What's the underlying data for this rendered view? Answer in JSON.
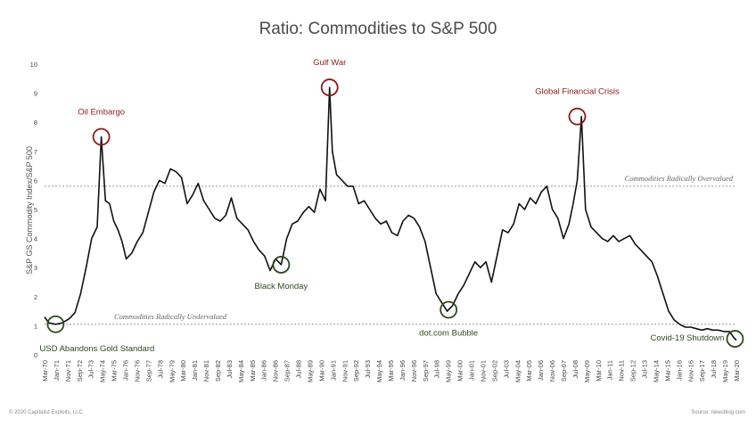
{
  "chart_data": {
    "type": "line",
    "title": "Ratio: Commodities to S&P 500",
    "ylabel": "S&P GS Commodity Index/S&P 500",
    "xlabel": "",
    "ylim": [
      0,
      10
    ],
    "yticks": [
      0,
      1,
      2,
      3,
      4,
      5,
      6,
      7,
      8,
      9,
      10
    ],
    "grid": false,
    "xticks": [
      "Mar-70",
      "Jan-71",
      "Nov-71",
      "Sep-72",
      "Jul-73",
      "May-74",
      "Mar-75",
      "Jan-76",
      "Nov-76",
      "Sep-77",
      "Jul-78",
      "May-79",
      "Mar-80",
      "Jan-81",
      "Nov-81",
      "Sep-82",
      "Jul-83",
      "May-84",
      "Mar-85",
      "Jan-86",
      "Nov-86",
      "Sep-87",
      "Jul-88",
      "May-89",
      "Mar-90",
      "Jan-91",
      "Nov-91",
      "Sep-92",
      "Jul-93",
      "May-94",
      "Mar-95",
      "Jan-96",
      "Nov-96",
      "Sep-97",
      "Jul-98",
      "May-99",
      "Mar-00",
      "Jan-01",
      "Nov-01",
      "Sep-02",
      "Jul-03",
      "May-04",
      "Mar-05",
      "Jan-06",
      "Nov-06",
      "Sep-07",
      "Jul-08",
      "May-09",
      "Mar-10",
      "Jan-11",
      "Nov-11",
      "Sep-12",
      "Jul-13",
      "May-14",
      "Mar-15",
      "Jan-16",
      "Nov-16",
      "Sep-17",
      "Jul-18",
      "May-19",
      "Mar-20"
    ],
    "series": [
      {
        "color": "#111111",
        "x": [
          1970.2,
          1970.5,
          1971.0,
          1971.5,
          1972.0,
          1972.4,
          1972.8,
          1973.2,
          1973.6,
          1974.0,
          1974.3,
          1974.6,
          1974.9,
          1975.2,
          1975.5,
          1975.8,
          1976.1,
          1976.5,
          1976.9,
          1977.3,
          1977.7,
          1978.1,
          1978.5,
          1978.9,
          1979.3,
          1979.7,
          1980.1,
          1980.5,
          1980.9,
          1981.3,
          1981.7,
          1982.1,
          1982.5,
          1982.9,
          1983.3,
          1983.7,
          1984.1,
          1984.5,
          1984.9,
          1985.3,
          1985.7,
          1986.1,
          1986.5,
          1986.9,
          1987.3,
          1987.7,
          1988.1,
          1988.5,
          1988.9,
          1989.3,
          1989.7,
          1990.1,
          1990.5,
          1990.8,
          1991.0,
          1991.3,
          1991.7,
          1992.1,
          1992.5,
          1992.9,
          1993.3,
          1993.7,
          1994.1,
          1994.5,
          1994.9,
          1995.3,
          1995.7,
          1996.1,
          1996.5,
          1996.9,
          1997.3,
          1997.7,
          1998.1,
          1998.5,
          1998.9,
          1999.3,
          1999.7,
          2000.1,
          2000.5,
          2000.9,
          2001.3,
          2001.7,
          2002.1,
          2002.5,
          2002.9,
          2003.3,
          2003.7,
          2004.1,
          2004.5,
          2004.9,
          2005.3,
          2005.7,
          2006.1,
          2006.5,
          2006.9,
          2007.3,
          2007.7,
          2008.1,
          2008.4,
          2008.7,
          2009.0,
          2009.3,
          2009.7,
          2010.1,
          2010.5,
          2010.9,
          2011.3,
          2011.7,
          2012.1,
          2012.5,
          2012.9,
          2013.3,
          2013.7,
          2014.1,
          2014.5,
          2014.9,
          2015.3,
          2015.7,
          2016.1,
          2016.5,
          2016.9,
          2017.3,
          2017.7,
          2018.1,
          2018.5,
          2018.9,
          2019.3,
          2019.7,
          2020.0,
          2020.2
        ],
        "values": [
          1.3,
          1.1,
          1.05,
          1.1,
          1.25,
          1.45,
          2.1,
          3.0,
          4.0,
          4.4,
          7.5,
          5.3,
          5.2,
          4.6,
          4.3,
          3.9,
          3.3,
          3.5,
          3.9,
          4.2,
          4.9,
          5.6,
          6.0,
          5.9,
          6.4,
          6.3,
          6.1,
          5.2,
          5.5,
          5.9,
          5.3,
          5.0,
          4.7,
          4.6,
          4.8,
          5.4,
          4.7,
          4.5,
          4.3,
          3.9,
          3.6,
          3.4,
          2.9,
          3.3,
          3.1,
          4.0,
          4.5,
          4.6,
          4.9,
          5.1,
          4.9,
          5.7,
          5.3,
          9.2,
          7.0,
          6.2,
          6.0,
          5.8,
          5.8,
          5.2,
          5.3,
          5.0,
          4.7,
          4.5,
          4.6,
          4.2,
          4.1,
          4.6,
          4.8,
          4.7,
          4.4,
          3.9,
          3.0,
          2.1,
          1.8,
          1.5,
          1.7,
          2.1,
          2.4,
          2.8,
          3.2,
          3.0,
          3.2,
          2.5,
          3.4,
          4.3,
          4.2,
          4.5,
          5.2,
          5.0,
          5.4,
          5.2,
          5.6,
          5.8,
          5.0,
          4.7,
          4.0,
          4.5,
          5.2,
          6.0,
          8.2,
          5.0,
          4.4,
          4.2,
          4.0,
          3.9,
          4.1,
          3.9,
          4.0,
          4.1,
          3.8,
          3.6,
          3.4,
          3.2,
          2.7,
          2.1,
          1.5,
          1.2,
          1.05,
          0.95,
          0.95,
          0.9,
          0.85,
          0.9,
          0.85,
          0.85,
          0.8,
          0.8,
          0.6,
          0.5
        ]
      }
    ],
    "reference_lines": [
      {
        "value": 5.8,
        "label": "Commodities Radically Overvalued"
      },
      {
        "value": 1.05,
        "label": "Commodities Radically Undervalued"
      }
    ],
    "annotations": [
      {
        "label": "Oil Embargo",
        "x": 1974.3,
        "y": 7.5,
        "color": "#8a1b1b"
      },
      {
        "label": "Gulf War",
        "x": 1990.8,
        "y": 9.2,
        "color": "#8a1b1b"
      },
      {
        "label": "Global Financial Crisis",
        "x": 2008.7,
        "y": 8.2,
        "color": "#8a1b1b"
      },
      {
        "label": "USD Abandons Gold Standard",
        "x": 1971.0,
        "y": 1.05,
        "color": "#2f4a1e"
      },
      {
        "label": "Black Monday",
        "x": 1987.3,
        "y": 3.1,
        "color": "#2f4a1e"
      },
      {
        "label": "dot.com Bubble",
        "x": 1999.4,
        "y": 1.55,
        "color": "#2f4a1e"
      },
      {
        "label": "Covid-19 Shutdown",
        "x": 2020.1,
        "y": 0.55,
        "color": "#2f4a1e"
      }
    ]
  },
  "footer": {
    "copyright": "© 2020 Capitalist Exploits, LLC",
    "source": "Source: newsblog.com"
  }
}
